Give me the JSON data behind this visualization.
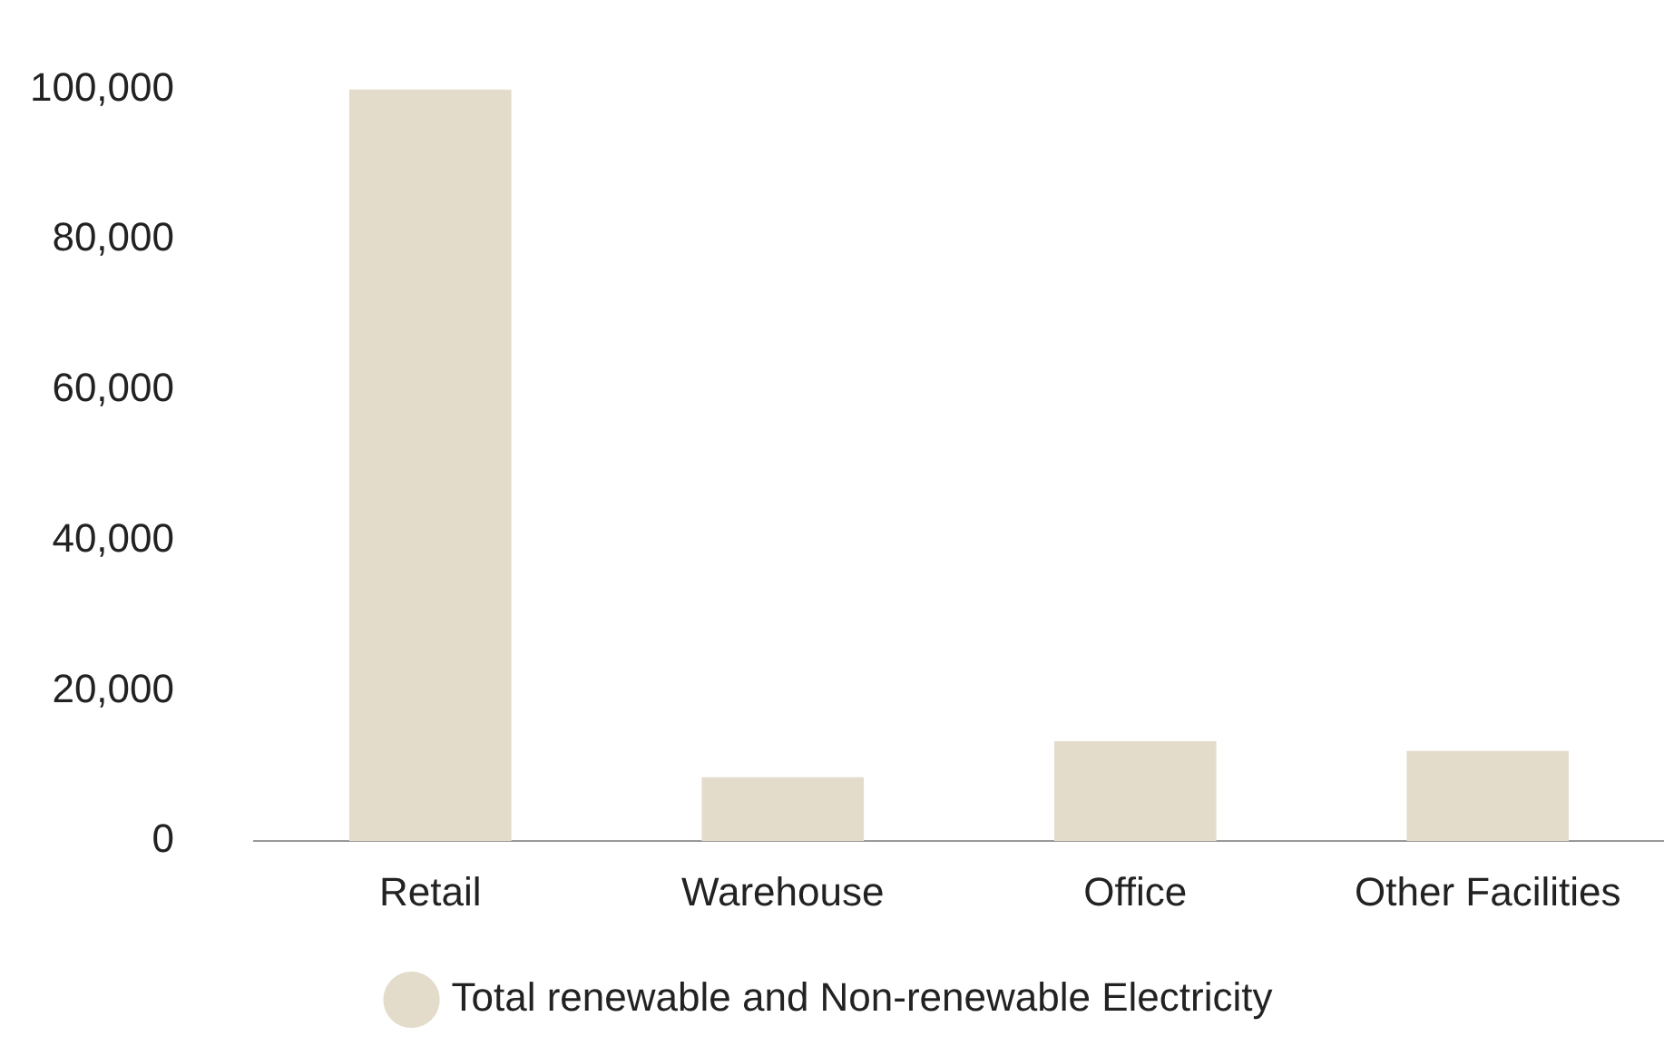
{
  "chart_data": {
    "type": "bar",
    "categories": [
      "Retail",
      "Warehouse",
      "Office",
      "Other Facilities"
    ],
    "series": [
      {
        "name": "Total renewable and Non-renewable Electricity",
        "color": "#e3dccb",
        "values": [
          100000,
          8500,
          13300,
          12000
        ]
      }
    ],
    "ylim": [
      0,
      100000
    ],
    "yticks": [
      {
        "value": 0,
        "label": "0"
      },
      {
        "value": 20000,
        "label": "20,000"
      },
      {
        "value": 40000,
        "label": "40,000"
      },
      {
        "value": 60000,
        "label": "60,000"
      },
      {
        "value": 80000,
        "label": "80,000"
      },
      {
        "value": 100000,
        "label": "100,000"
      }
    ],
    "grid": false,
    "legend": "bottom"
  }
}
